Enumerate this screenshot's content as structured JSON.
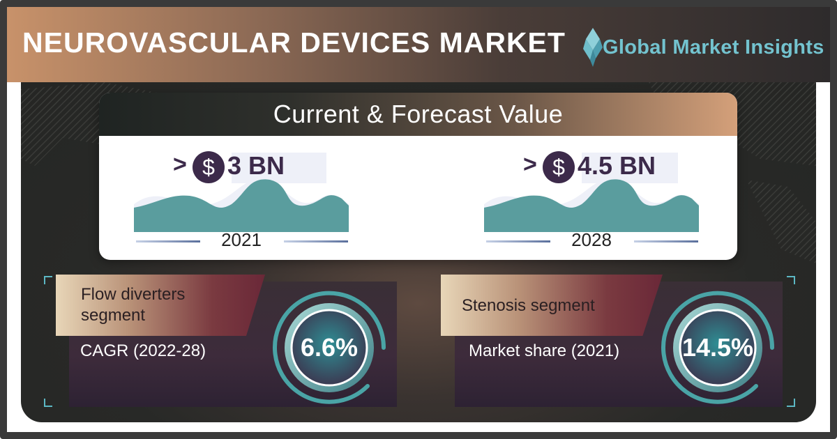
{
  "header": {
    "title": "NEUROVASCULAR DEVICES MARKET",
    "brand": "Global Market Insights"
  },
  "forecast": {
    "title": "Current & Forecast Value",
    "items": [
      {
        "prefix": ">",
        "currency_symbol": "$",
        "amount": "3 BN",
        "year": "2021"
      },
      {
        "prefix": ">",
        "currency_symbol": "$",
        "amount": "4.5 BN",
        "year": "2028"
      }
    ]
  },
  "segments": [
    {
      "tag": [
        "Flow diverters",
        "segment"
      ],
      "metric_label": "CAGR (2022-28)",
      "metric_value": "6.6%"
    },
    {
      "tag": [
        "Stenosis segment"
      ],
      "metric_label": "Market share (2021)",
      "metric_value": "14.5%"
    }
  ],
  "colors": {
    "accent_teal": "#5cb8c4",
    "brand_text": "#73c3cf",
    "dark_purple": "#3c2a4a",
    "copper": "#c8926a"
  },
  "icons": [
    "dollar-icon",
    "diamond-logo-icon",
    "area-wave-icon",
    "gauge-ring-icon"
  ]
}
